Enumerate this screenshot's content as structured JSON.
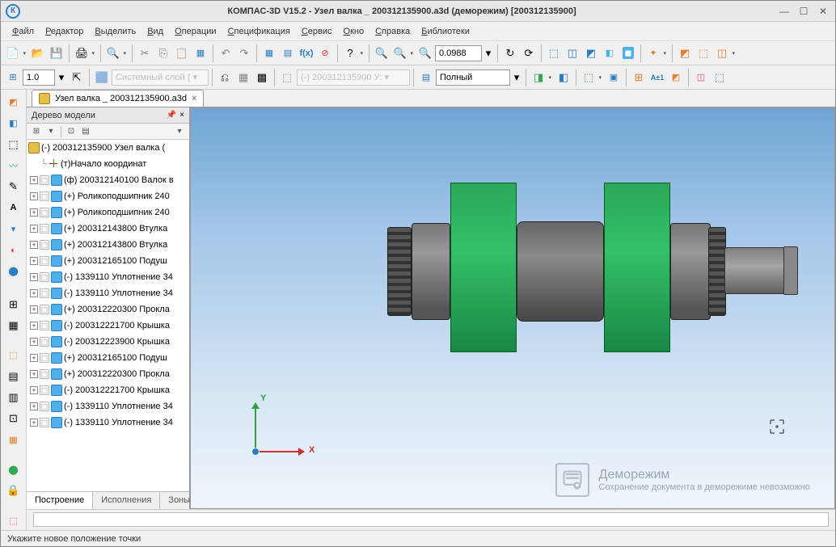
{
  "title": "КОМПАС-3D V15.2  - Узел валка _ 200312135900.a3d (деморежим) [200312135900]",
  "menu": [
    "Файл",
    "Редактор",
    "Выделить",
    "Вид",
    "Операции",
    "Спецификация",
    "Сервис",
    "Окно",
    "Справка",
    "Библиотеки"
  ],
  "tb1": {
    "zoom_value": "0.0988"
  },
  "tb2": {
    "line_weight": "1.0",
    "layer": "Системный слой ( ▾",
    "obj": "(-) 200312135900 У: ▾",
    "display": "Полный"
  },
  "doctab": {
    "label": "Узел валка _ 200312135900.a3d"
  },
  "tree": {
    "title": "Дерево модели",
    "root": "(-) 200312135900 Узел валка (",
    "origin": "(т)Начало координат",
    "items": [
      {
        "s": "+",
        "t": "(ф) 200312140100 Валок в",
        "i": "ico-part"
      },
      {
        "s": "+",
        "t": "(+) Роликоподшипник 240",
        "i": "ico-part"
      },
      {
        "s": "+",
        "t": "(+) Роликоподшипник 240",
        "i": "ico-part"
      },
      {
        "s": "+",
        "t": "(+) 200312143800 Втулка",
        "i": "ico-part"
      },
      {
        "s": "+",
        "t": "(+) 200312143800 Втулка",
        "i": "ico-part"
      },
      {
        "s": "+",
        "t": "(+) 200312165100 Подуш",
        "i": "ico-part"
      },
      {
        "s": "+",
        "t": "(-) 1339110 Уплотнение 34",
        "i": "ico-part"
      },
      {
        "s": "+",
        "t": "(-) 1339110 Уплотнение 34",
        "i": "ico-part"
      },
      {
        "s": "+",
        "t": "(+) 200312220300 Прокла",
        "i": "ico-part"
      },
      {
        "s": "+",
        "t": "(-) 200312221700 Крышка",
        "i": "ico-part"
      },
      {
        "s": "+",
        "t": "(-) 200312223900 Крышка",
        "i": "ico-part"
      },
      {
        "s": "+",
        "t": "(+) 200312165100 Подуш",
        "i": "ico-part"
      },
      {
        "s": "+",
        "t": "(+) 200312220300 Прокла",
        "i": "ico-part"
      },
      {
        "s": "+",
        "t": "(-) 200312221700 Крышка",
        "i": "ico-part"
      },
      {
        "s": "+",
        "t": "(-) 1339110 Уплотнение 34",
        "i": "ico-part"
      },
      {
        "s": "+",
        "t": "(-) 1339110 Уплотнение 34",
        "i": "ico-part"
      }
    ],
    "tabs": [
      "Построение",
      "Исполнения",
      "Зоны"
    ]
  },
  "axis": {
    "x": "X",
    "y": "Y"
  },
  "demo": {
    "title": "Деморежим",
    "sub": "Сохранение документа в деморежиме невозможно"
  },
  "status": "Укажите новое положение точки"
}
